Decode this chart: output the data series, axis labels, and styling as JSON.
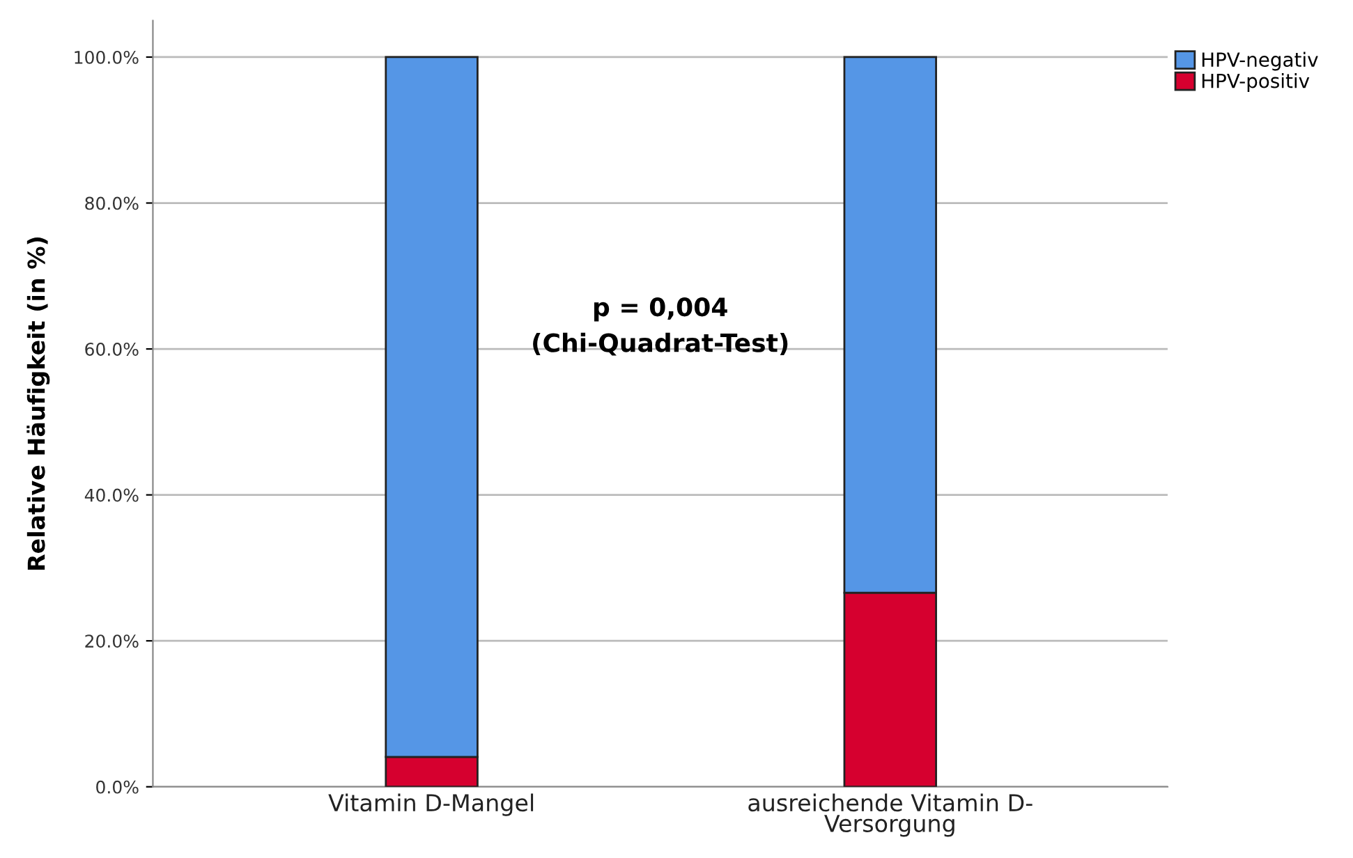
{
  "chart_data": {
    "type": "bar",
    "stacked": true,
    "categories": [
      "Vitamin D-Mangel",
      "ausreichende Vitamin D-\nVersorgung"
    ],
    "series": [
      {
        "name": "HPV-positiv",
        "color": "#d6002f",
        "values": [
          4.1,
          26.6
        ]
      },
      {
        "name": "HPV-negativ",
        "color": "#5596e6",
        "values": [
          95.9,
          73.4
        ]
      }
    ],
    "ylabel": "Relative Häufigkeit (in %)",
    "ylim": [
      0,
      105
    ],
    "yticks": [
      {
        "value": 0,
        "label": "0.0%"
      },
      {
        "value": 20,
        "label": "20.0%"
      },
      {
        "value": 40,
        "label": "40.0%"
      },
      {
        "value": 60,
        "label": "60.0%"
      },
      {
        "value": 80,
        "label": "80.0%"
      },
      {
        "value": 100,
        "label": "100.0%"
      }
    ],
    "grid": "y",
    "legend": "top right",
    "annotations": [
      "p = 0,004\n(Chi-Quadrat-Test)"
    ]
  }
}
